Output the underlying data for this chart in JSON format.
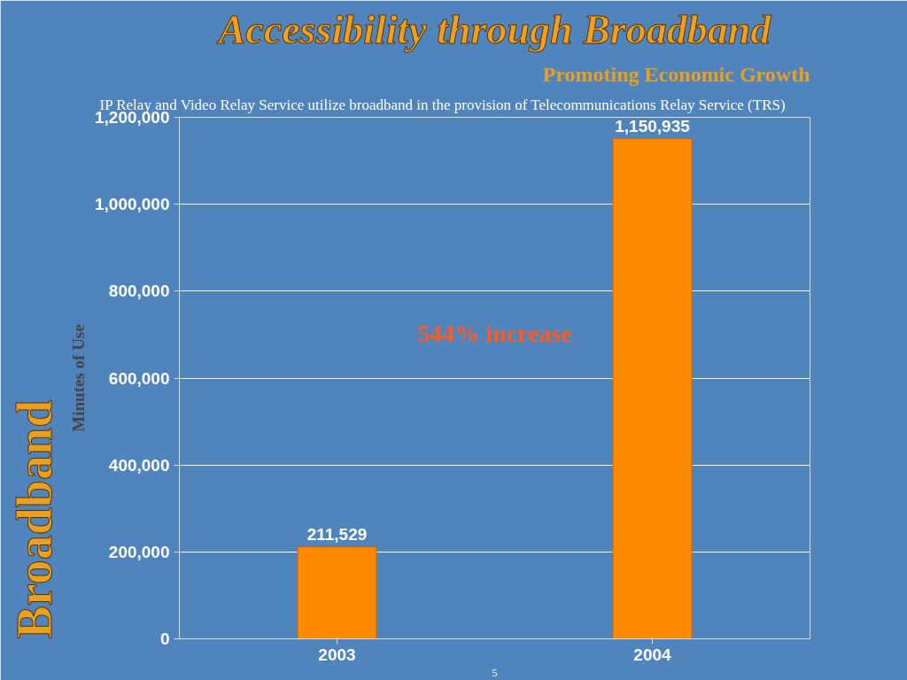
{
  "chart_data": {
    "type": "bar",
    "title": "Accessibility through Broadband",
    "subtitle": "Promoting Economic Growth",
    "ylabel": "Minutes of Use",
    "annotations": [
      "IP Relay and Video Relay Service utilize broadband in the provision of Telecommunications Relay Service (TRS)",
      "544% increase",
      "Broadband",
      "5"
    ],
    "categories": [
      "2003",
      "2004"
    ],
    "values": [
      211529,
      1150935
    ],
    "color": "#ff8a00",
    "value_labels": [
      "211,529",
      "1,150,935"
    ],
    "ylim": [
      0,
      1200000
    ],
    "yticks": [
      {
        "value": 0,
        "label": "0"
      },
      {
        "value": 200000,
        "label": "200,000"
      },
      {
        "value": 400000,
        "label": "400,000"
      },
      {
        "value": 600000,
        "label": "600,000"
      },
      {
        "value": 800000,
        "label": "800,000"
      },
      {
        "value": 1000000,
        "label": "1,000,000"
      },
      {
        "value": 1200000,
        "label": "1,200,000"
      }
    ],
    "grid": "y"
  }
}
